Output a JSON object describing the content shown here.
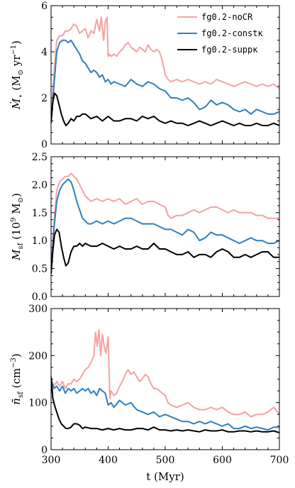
{
  "chart_data": [
    {
      "type": "line",
      "ylabel_main": "Ṁ",
      "ylabel_sub": "⋆",
      "ylabel_unit": "(M",
      "ylabel_unit_sub": "⊙",
      "ylabel_unit_tail": " yr",
      "ylabel_unit_sup": "−1",
      "ylabel_close": ")",
      "xlim": [
        300,
        700
      ],
      "ylim": [
        0,
        6
      ],
      "yticks": [
        "0",
        "2",
        "4",
        "6"
      ],
      "legend": {
        "position": "upper right"
      },
      "series": [
        {
          "name": "fg0.2-noCR",
          "color": "#f4a3a3",
          "x": [
            300,
            305,
            310,
            315,
            320,
            325,
            330,
            335,
            340,
            345,
            350,
            355,
            360,
            365,
            370,
            375,
            380,
            385,
            388,
            392,
            395,
            398,
            400,
            402,
            405,
            410,
            415,
            420,
            425,
            430,
            435,
            440,
            445,
            450,
            455,
            460,
            465,
            470,
            475,
            480,
            485,
            490,
            495,
            500,
            505,
            510,
            520,
            530,
            540,
            550,
            560,
            570,
            580,
            590,
            600,
            610,
            620,
            630,
            640,
            650,
            660,
            670,
            680,
            690,
            700
          ],
          "y": [
            1.0,
            3.0,
            4.5,
            4.7,
            4.7,
            4.9,
            4.9,
            5.0,
            5.2,
            5.1,
            4.8,
            4.9,
            5.0,
            4.6,
            4.9,
            4.8,
            5.4,
            4.9,
            5.5,
            4.5,
            5.3,
            5.5,
            3.8,
            3.9,
            3.8,
            3.9,
            3.8,
            4.0,
            4.1,
            4.3,
            4.4,
            4.2,
            4.1,
            4.0,
            4.2,
            4.1,
            4.0,
            4.3,
            4.1,
            4.0,
            4.1,
            4.0,
            3.6,
            3.0,
            2.8,
            2.7,
            2.8,
            2.7,
            2.8,
            2.7,
            2.6,
            2.7,
            2.6,
            2.8,
            2.7,
            2.6,
            2.5,
            2.6,
            2.7,
            2.6,
            2.5,
            2.6,
            2.5,
            2.6,
            2.4
          ]
        },
        {
          "name": "fg0.2-constκ",
          "color": "#2f7fbf",
          "x": [
            300,
            305,
            310,
            315,
            320,
            325,
            330,
            335,
            340,
            345,
            350,
            355,
            360,
            365,
            370,
            375,
            380,
            385,
            390,
            395,
            400,
            405,
            410,
            420,
            430,
            440,
            450,
            460,
            470,
            480,
            490,
            500,
            510,
            520,
            530,
            540,
            550,
            560,
            570,
            580,
            590,
            600,
            610,
            620,
            630,
            640,
            650,
            660,
            670,
            680,
            690,
            700
          ],
          "y": [
            1.0,
            2.5,
            4.0,
            4.4,
            4.5,
            4.5,
            4.4,
            4.5,
            4.3,
            4.1,
            3.9,
            3.6,
            3.5,
            3.3,
            3.1,
            3.2,
            3.1,
            2.9,
            3.0,
            2.7,
            2.8,
            2.6,
            2.7,
            2.6,
            2.5,
            2.8,
            2.6,
            2.5,
            2.7,
            2.6,
            2.4,
            2.3,
            2.0,
            2.0,
            1.9,
            2.0,
            1.8,
            1.5,
            1.6,
            1.9,
            1.7,
            1.8,
            1.7,
            1.5,
            1.4,
            1.5,
            1.3,
            1.5,
            1.4,
            1.3,
            1.3,
            1.4
          ]
        },
        {
          "name": "fg0.2-suppκ",
          "color": "#000000",
          "x": [
            300,
            303,
            306,
            310,
            314,
            318,
            322,
            326,
            330,
            335,
            340,
            345,
            350,
            355,
            360,
            365,
            370,
            380,
            390,
            400,
            410,
            420,
            430,
            440,
            450,
            460,
            470,
            480,
            490,
            500,
            510,
            520,
            530,
            540,
            550,
            560,
            570,
            580,
            590,
            600,
            610,
            620,
            630,
            640,
            650,
            660,
            670,
            680,
            690,
            700
          ],
          "y": [
            0.9,
            1.8,
            2.2,
            2.1,
            1.7,
            1.3,
            1.0,
            0.8,
            0.9,
            1.1,
            1.0,
            1.2,
            1.2,
            1.3,
            1.3,
            1.2,
            1.1,
            1.2,
            1.0,
            1.2,
            1.0,
            1.0,
            1.1,
            1.1,
            1.0,
            1.2,
            1.1,
            1.2,
            1.0,
            0.9,
            1.0,
            0.9,
            0.9,
            0.8,
            0.9,
            1.0,
            0.9,
            0.8,
            0.9,
            1.0,
            0.9,
            0.8,
            0.9,
            0.8,
            0.8,
            0.9,
            0.8,
            0.8,
            0.9,
            0.8
          ]
        }
      ]
    },
    {
      "type": "line",
      "ylabel_main": "M",
      "ylabel_sub": "sf",
      "ylabel_unit": "(10",
      "ylabel_unit_sup": "9",
      "ylabel_unit_tail": " M",
      "ylabel_unit_sub": "⊙",
      "ylabel_close": ")",
      "xlim": [
        300,
        700
      ],
      "ylim": [
        0,
        2.5
      ],
      "yticks": [
        "0.0",
        "0.5",
        "1.0",
        "1.5",
        "2.0",
        "2.5"
      ],
      "series": [
        {
          "name": "fg0.2-noCR",
          "color": "#f4a3a3",
          "x": [
            300,
            305,
            310,
            315,
            320,
            325,
            330,
            335,
            340,
            345,
            350,
            355,
            360,
            365,
            370,
            380,
            390,
            400,
            410,
            420,
            430,
            440,
            450,
            460,
            470,
            480,
            490,
            500,
            505,
            510,
            520,
            530,
            540,
            550,
            560,
            570,
            580,
            590,
            600,
            610,
            620,
            630,
            640,
            650,
            660,
            670,
            680,
            690,
            700
          ],
          "y": [
            0.5,
            1.3,
            1.9,
            2.05,
            2.1,
            2.15,
            2.15,
            2.2,
            2.15,
            2.1,
            2.0,
            1.9,
            1.8,
            1.75,
            1.7,
            1.75,
            1.7,
            1.75,
            1.7,
            1.75,
            1.65,
            1.7,
            1.75,
            1.65,
            1.7,
            1.7,
            1.65,
            1.6,
            1.45,
            1.4,
            1.45,
            1.45,
            1.5,
            1.55,
            1.5,
            1.55,
            1.6,
            1.6,
            1.55,
            1.5,
            1.55,
            1.5,
            1.5,
            1.5,
            1.45,
            1.45,
            1.4,
            1.4,
            1.4
          ]
        },
        {
          "name": "fg0.2-constκ",
          "color": "#2f7fbf",
          "x": [
            300,
            305,
            310,
            315,
            320,
            325,
            330,
            335,
            340,
            345,
            350,
            355,
            360,
            365,
            370,
            380,
            390,
            400,
            410,
            420,
            430,
            440,
            450,
            460,
            470,
            480,
            490,
            500,
            510,
            520,
            530,
            540,
            550,
            560,
            570,
            580,
            590,
            600,
            610,
            620,
            630,
            640,
            650,
            660,
            670,
            680,
            690,
            700
          ],
          "y": [
            0.4,
            1.2,
            1.7,
            1.9,
            2.0,
            2.05,
            2.1,
            2.05,
            1.9,
            1.7,
            1.55,
            1.4,
            1.35,
            1.3,
            1.3,
            1.35,
            1.3,
            1.35,
            1.3,
            1.35,
            1.4,
            1.4,
            1.35,
            1.3,
            1.3,
            1.3,
            1.25,
            1.2,
            1.2,
            1.15,
            1.1,
            1.2,
            1.15,
            1.0,
            1.05,
            1.15,
            1.1,
            1.1,
            1.05,
            1.0,
            0.95,
            1.0,
            1.05,
            1.0,
            1.0,
            0.95,
            0.95,
            1.0
          ]
        },
        {
          "name": "fg0.2-suppκ",
          "color": "#000000",
          "x": [
            300,
            303,
            306,
            310,
            314,
            318,
            322,
            326,
            330,
            335,
            340,
            345,
            350,
            355,
            360,
            370,
            380,
            390,
            400,
            410,
            420,
            430,
            440,
            450,
            460,
            470,
            480,
            490,
            500,
            510,
            520,
            530,
            540,
            550,
            560,
            570,
            580,
            590,
            600,
            610,
            620,
            630,
            640,
            650,
            660,
            670,
            680,
            690,
            700
          ],
          "y": [
            0.4,
            0.8,
            1.1,
            1.2,
            1.15,
            0.9,
            0.7,
            0.55,
            0.6,
            0.8,
            0.9,
            0.9,
            0.95,
            0.9,
            0.95,
            0.9,
            0.9,
            0.95,
            0.9,
            0.85,
            0.9,
            0.85,
            0.85,
            0.9,
            0.85,
            0.85,
            0.95,
            0.85,
            0.85,
            0.8,
            0.75,
            0.75,
            0.8,
            0.7,
            0.75,
            0.75,
            0.7,
            0.8,
            0.85,
            0.8,
            0.7,
            0.7,
            0.75,
            0.7,
            0.75,
            0.8,
            0.8,
            0.7,
            0.7
          ]
        }
      ]
    },
    {
      "type": "line",
      "ylabel_main": "n̄",
      "ylabel_sub": "sf",
      "ylabel_unit": "(cm",
      "ylabel_unit_sup": "−3",
      "ylabel_close": ")",
      "xlabel": "t (Myr)",
      "xlim": [
        300,
        700
      ],
      "ylim": [
        0,
        300
      ],
      "xticks": [
        "300",
        "400",
        "500",
        "600",
        "700"
      ],
      "yticks": [
        "0",
        "100",
        "200",
        "300"
      ],
      "series": [
        {
          "name": "fg0.2-noCR",
          "color": "#f4a3a3",
          "x": [
            300,
            305,
            310,
            315,
            320,
            325,
            330,
            335,
            340,
            345,
            350,
            355,
            360,
            365,
            370,
            375,
            378,
            381,
            384,
            387,
            390,
            393,
            396,
            400,
            403,
            405,
            410,
            415,
            420,
            425,
            430,
            435,
            440,
            445,
            450,
            455,
            460,
            465,
            470,
            475,
            480,
            485,
            490,
            495,
            500,
            505,
            510,
            520,
            530,
            540,
            550,
            560,
            570,
            580,
            590,
            600,
            610,
            620,
            630,
            640,
            650,
            660,
            670,
            680,
            690,
            700
          ],
          "y": [
            150,
            135,
            145,
            135,
            145,
            130,
            140,
            140,
            150,
            145,
            150,
            160,
            170,
            175,
            185,
            200,
            250,
            220,
            255,
            200,
            245,
            220,
            205,
            240,
            110,
            125,
            115,
            120,
            135,
            145,
            160,
            170,
            160,
            165,
            155,
            145,
            150,
            160,
            155,
            140,
            130,
            130,
            125,
            120,
            115,
            100,
            95,
            90,
            95,
            100,
            90,
            85,
            85,
            90,
            85,
            90,
            80,
            75,
            75,
            80,
            70,
            75,
            75,
            80,
            90,
            75
          ]
        },
        {
          "name": "fg0.2-constκ",
          "color": "#2f7fbf",
          "x": [
            300,
            305,
            310,
            315,
            320,
            325,
            330,
            335,
            340,
            345,
            350,
            355,
            360,
            365,
            370,
            375,
            380,
            385,
            390,
            395,
            400,
            405,
            410,
            420,
            430,
            440,
            450,
            460,
            470,
            480,
            490,
            500,
            510,
            520,
            530,
            540,
            550,
            560,
            570,
            580,
            590,
            600,
            610,
            620,
            630,
            640,
            650,
            660,
            670,
            680,
            690,
            700
          ],
          "y": [
            150,
            130,
            135,
            125,
            135,
            120,
            130,
            125,
            130,
            120,
            125,
            130,
            125,
            130,
            120,
            125,
            115,
            130,
            125,
            120,
            95,
            100,
            90,
            105,
            95,
            100,
            85,
            80,
            75,
            80,
            70,
            75,
            70,
            65,
            60,
            60,
            55,
            60,
            55,
            60,
            55,
            50,
            55,
            45,
            45,
            50,
            45,
            48,
            45,
            42,
            48,
            48
          ]
        },
        {
          "name": "fg0.2-suppκ",
          "color": "#000000",
          "x": [
            300,
            303,
            306,
            310,
            314,
            318,
            322,
            326,
            330,
            335,
            340,
            345,
            350,
            355,
            360,
            370,
            380,
            390,
            400,
            410,
            420,
            430,
            440,
            450,
            460,
            470,
            480,
            490,
            500,
            510,
            520,
            530,
            540,
            550,
            560,
            570,
            580,
            590,
            600,
            610,
            620,
            630,
            640,
            650,
            660,
            670,
            680,
            690,
            700
          ],
          "y": [
            155,
            110,
            95,
            80,
            65,
            55,
            50,
            45,
            45,
            48,
            55,
            55,
            52,
            45,
            48,
            45,
            45,
            42,
            45,
            42,
            45,
            42,
            42,
            45,
            45,
            42,
            48,
            42,
            42,
            40,
            42,
            40,
            42,
            40,
            38,
            42,
            40,
            40,
            42,
            38,
            38,
            40,
            40,
            38,
            40,
            38,
            38,
            40,
            36
          ]
        }
      ]
    }
  ]
}
